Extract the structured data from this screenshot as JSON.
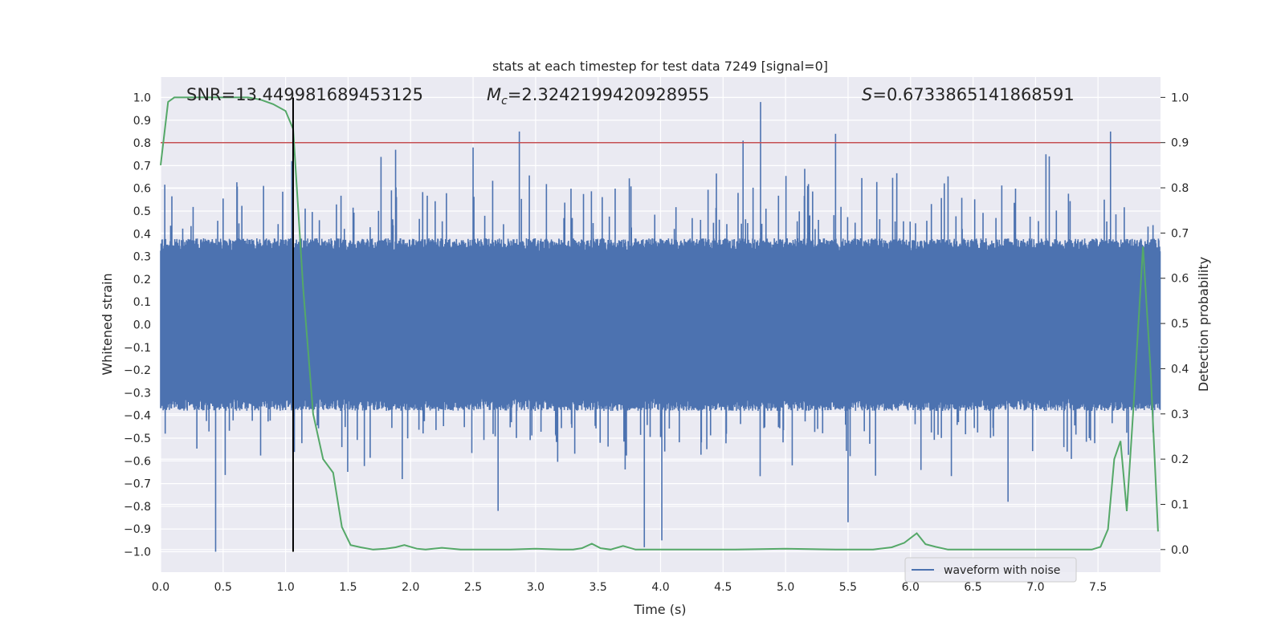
{
  "chart_data": {
    "type": "line",
    "title": "stats at each timestep for test data 7249 [signal=0]",
    "xlabel": "Time (s)",
    "ylabel": "Whitened strain",
    "y2label": "Detection probability",
    "xlim": [
      0.0,
      8.0
    ],
    "ylim": [
      -1.09,
      1.09
    ],
    "y2lim": [
      -0.05,
      1.045
    ],
    "xticks": [
      "0.0",
      "0.5",
      "1.0",
      "1.5",
      "2.0",
      "2.5",
      "3.0",
      "3.5",
      "4.0",
      "4.5",
      "5.0",
      "5.5",
      "6.0",
      "6.5",
      "7.0",
      "7.5"
    ],
    "yticks": [
      "1.0",
      "0.9",
      "0.8",
      "0.7",
      "0.6",
      "0.5",
      "0.4",
      "0.3",
      "0.2",
      "0.1",
      "0.0",
      "−0.1",
      "−0.2",
      "−0.3",
      "−0.4",
      "−0.5",
      "−0.6",
      "−0.7",
      "−0.8",
      "−0.9",
      "−1.0"
    ],
    "y2ticks": [
      "1.0",
      "0.9",
      "0.8",
      "0.7",
      "0.6",
      "0.5",
      "0.4",
      "0.3",
      "0.2",
      "0.1",
      "0.0"
    ],
    "annotations": {
      "snr": "SNR=13.449981689453125",
      "mc_prefix": "M",
      "mc_sub": "c",
      "mc_value": "=2.3242199420928955",
      "s_prefix": "S",
      "s_value": "=0.6733865141868591"
    },
    "threshold_y2": 0.9,
    "marker_time": 1.06,
    "legend": {
      "label": "waveform with noise",
      "location": "lower-right"
    },
    "series": [
      {
        "name": "waveform with noise",
        "axis": "left",
        "color": "#4c72b0",
        "description": "noisy whitened strain, roughly within ±0.4 with spikes up to ~±1.0",
        "seed": 7249,
        "duration": 8.0,
        "base_amplitude": 0.38,
        "spikes": [
          {
            "t": 0.44,
            "v": -1.0
          },
          {
            "t": 1.05,
            "v": 0.72
          },
          {
            "t": 1.88,
            "v": 0.77
          },
          {
            "t": 2.87,
            "v": 0.85
          },
          {
            "t": 3.87,
            "v": -0.98
          },
          {
            "t": 4.01,
            "v": -0.95
          },
          {
            "t": 4.8,
            "v": 0.98
          },
          {
            "t": 4.66,
            "v": 0.81
          },
          {
            "t": 5.4,
            "v": 0.84
          },
          {
            "t": 6.78,
            "v": -0.78
          },
          {
            "t": 7.6,
            "v": 0.85
          },
          {
            "t": 2.7,
            "v": -0.82
          },
          {
            "t": 5.5,
            "v": -0.87
          },
          {
            "t": 2.5,
            "v": 0.78
          }
        ]
      },
      {
        "name": "detection probability",
        "axis": "right",
        "color": "#55a868",
        "t": [
          0.0,
          0.06,
          0.11,
          0.2,
          0.3,
          0.4,
          0.5,
          0.6,
          0.7,
          0.8,
          0.9,
          1.0,
          1.06,
          1.14,
          1.22,
          1.3,
          1.38,
          1.45,
          1.52,
          1.6,
          1.7,
          1.8,
          1.88,
          1.95,
          2.05,
          2.12,
          2.25,
          2.4,
          2.6,
          2.8,
          3.0,
          3.2,
          3.3,
          3.37,
          3.45,
          3.52,
          3.6,
          3.7,
          3.8,
          4.0,
          4.3,
          4.6,
          5.0,
          5.4,
          5.7,
          5.85,
          5.95,
          6.05,
          6.12,
          6.2,
          6.3,
          6.6,
          7.0,
          7.3,
          7.38,
          7.45,
          7.52,
          7.58,
          7.63,
          7.68,
          7.73,
          7.78,
          7.86,
          7.92,
          7.98
        ],
        "values": [
          0.85,
          0.99,
          1.0,
          1.0,
          1.0,
          1.0,
          1.0,
          1.0,
          1.0,
          0.995,
          0.985,
          0.97,
          0.93,
          0.58,
          0.3,
          0.2,
          0.17,
          0.05,
          0.01,
          0.005,
          0.0,
          0.002,
          0.005,
          0.01,
          0.002,
          0.0,
          0.004,
          0.0,
          0.0,
          0.0,
          0.002,
          0.0,
          0.0,
          0.003,
          0.013,
          0.003,
          0.0,
          0.008,
          0.0,
          0.0,
          0.0,
          0.0,
          0.002,
          0.0,
          0.0,
          0.005,
          0.015,
          0.036,
          0.012,
          0.006,
          0.0,
          0.0,
          0.0,
          0.0,
          0.0,
          0.0,
          0.006,
          0.045,
          0.2,
          0.24,
          0.085,
          0.3,
          0.67,
          0.4,
          0.04
        ]
      }
    ]
  }
}
